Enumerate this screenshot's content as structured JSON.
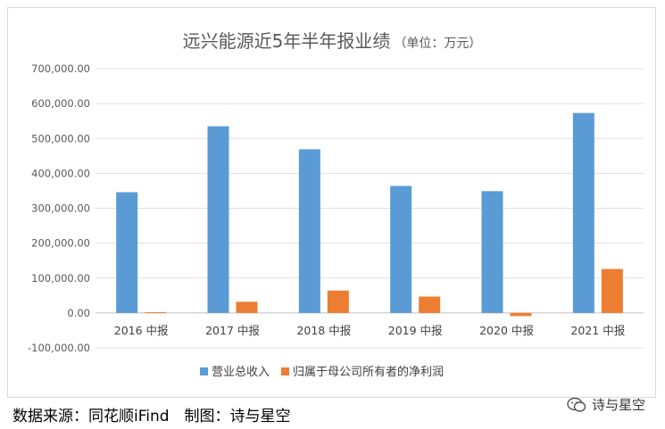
{
  "chart_data": {
    "type": "bar",
    "title": "远兴能源近5年半年报业绩",
    "title_unit": "（单位：万元）",
    "categories": [
      "2016 中报",
      "2017 中报",
      "2018 中报",
      "2019 中报",
      "2020 中报",
      "2021 中报"
    ],
    "series": [
      {
        "name": "营业总收入",
        "color": "#5b9bd5",
        "values": [
          346000,
          535000,
          469000,
          364000,
          349000,
          573000
        ]
      },
      {
        "name": "归属于母公司所有者的净利润",
        "color": "#ed7d31",
        "values": [
          2000,
          32000,
          64000,
          47000,
          -9000,
          126000
        ]
      }
    ],
    "ylim": [
      -100000,
      700000
    ],
    "yticks": [
      -100000,
      0,
      100000,
      200000,
      300000,
      400000,
      500000,
      600000,
      700000
    ],
    "ytick_labels": [
      "-100,000.00",
      "0.00",
      "100,000.00",
      "200,000.00",
      "300,000.00",
      "400,000.00",
      "500,000.00",
      "600,000.00",
      "700,000.00"
    ],
    "grid": true,
    "legend_position": "bottom"
  },
  "footer": {
    "source": "数据来源：同花顺iFind　制图：诗与星空",
    "watermark": "诗与星空"
  },
  "watermark_icon": "wechat-icon"
}
